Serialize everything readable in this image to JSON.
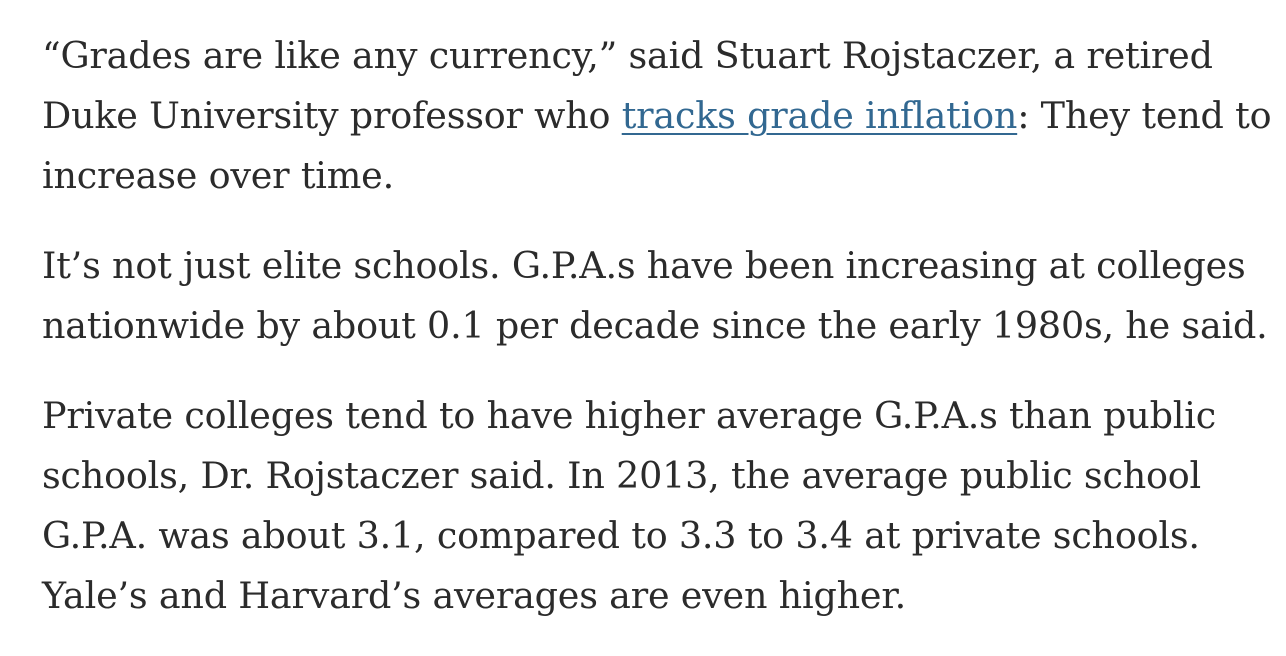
{
  "article": {
    "p1": {
      "line1": "“Grades are like any currency,” said Stuart Rojstaczer, a retired",
      "line2_before": "Duke University professor who ",
      "link_text": "tracks grade inflation",
      "line2_after": ": They tend to",
      "line3": "increase over time."
    },
    "p2": {
      "line1": "It’s not just elite schools. G.P.A.s have been increasing at colleges",
      "line2": "nationwide by about 0.1 per decade since the early 1980s, he said."
    },
    "p3": {
      "line1": "Private colleges tend to have higher average G.P.A.s than public",
      "line2": "schools, Dr. Rojstaczer said. In 2013, the average public school",
      "line3": "G.P.A. was about 3.1, compared to 3.3 to 3.4 at private schools.",
      "line4": "Yale’s and Harvard’s averages are even higher."
    }
  },
  "colors": {
    "text": "#2b2b2b",
    "link": "#326891",
    "background": "#ffffff"
  }
}
